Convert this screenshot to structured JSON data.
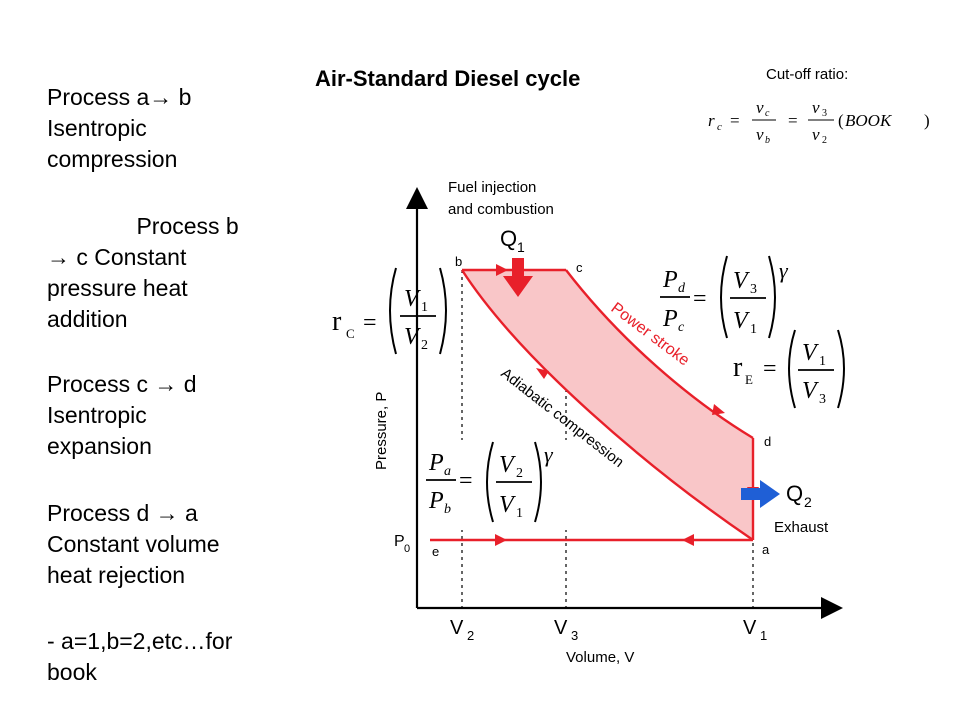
{
  "title": "Air-Standard Diesel cycle",
  "cutoff_label": "Cut-off ratio:",
  "cutoff_formula": {
    "lhs": "r",
    "lhs_sub": "c",
    "num1": "v",
    "num1_sub": "c",
    "den1": "v",
    "den1_sub": "b",
    "num2": "v",
    "num2_sub": "3",
    "den2": "v",
    "den2_sub": "2",
    "note": "BOOK"
  },
  "processes": [
    {
      "lines": [
        "Process a→ b",
        "Isentropic",
        "compression"
      ]
    },
    {
      "lines": [
        "              Process b",
        "→ c  Constant",
        "pressure heat",
        "addition"
      ]
    },
    {
      "lines": [
        "Process c → d",
        "Isentropic",
        "expansion"
      ]
    },
    {
      "lines": [
        "Process d → a",
        "Constant volume",
        "heat rejection"
      ]
    },
    {
      "lines": [
        "-  a=1,b=2,etc…for",
        "book"
      ]
    }
  ],
  "diagram": {
    "fuel_label_1": "Fuel injection",
    "fuel_label_2": "and combustion",
    "q1": "Q",
    "q1_sub": "1",
    "q2": "Q",
    "q2_sub": "2",
    "exhaust": "Exhaust",
    "power_stroke": "Power stroke",
    "adiabatic": "Adiabatic compression",
    "y_axis": "Pressure, P",
    "x_axis": "Volume, V",
    "p0": "P",
    "p0_sub": "0",
    "points": {
      "b": "b",
      "c": "c",
      "d": "d",
      "a": "a",
      "e": "e"
    },
    "ticks": [
      {
        "v": "V",
        "sub": "2"
      },
      {
        "v": "V",
        "sub": "3"
      },
      {
        "v": "V",
        "sub": "1"
      }
    ],
    "rc_label": "r",
    "rc_sub": "C",
    "re_label": "r",
    "re_sub": "E",
    "frac_v1": "V",
    "frac_v1_sub": "1",
    "frac_v2": "V",
    "frac_v2_sub": "2",
    "frac_v3": "V",
    "frac_v3_sub": "3",
    "pd": "P",
    "pd_sub": "d",
    "pc": "P",
    "pc_sub": "c",
    "pa": "P",
    "pa_sub": "a",
    "pb": "P",
    "pb_sub": "b",
    "gamma": "γ",
    "colors": {
      "fill": "#f9c6c8",
      "stroke": "#e8202a",
      "q2_arrow": "#1f5fd6"
    }
  }
}
